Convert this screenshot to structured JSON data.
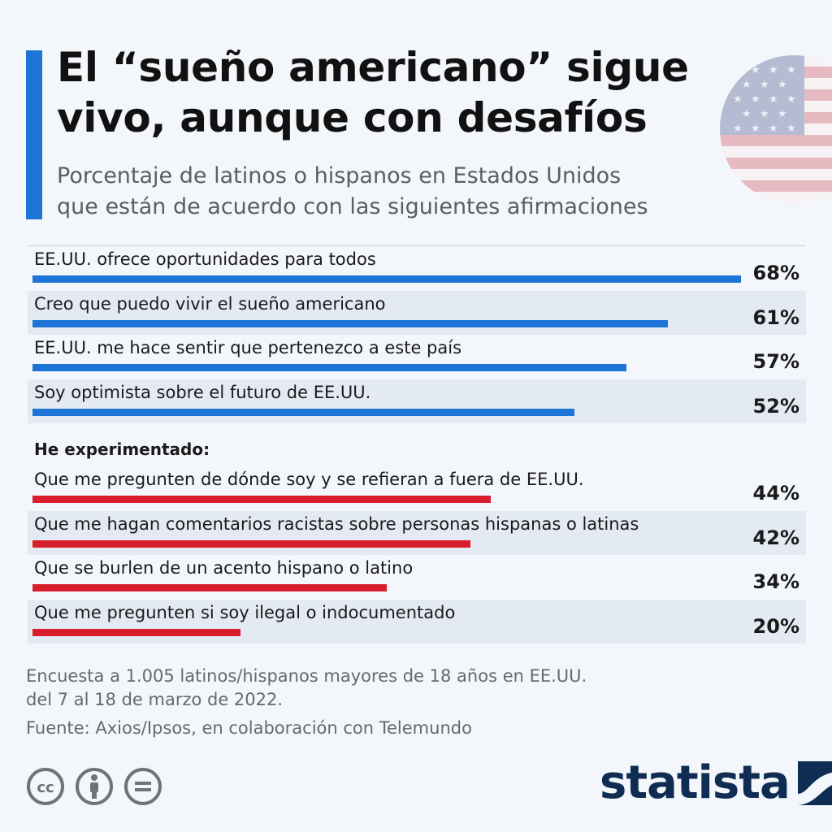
{
  "header": {
    "title_line1": "El “sueño americano” sigue",
    "title_line2": "vivo, aunque con desafíos",
    "subtitle_line1": "Porcentaje de latinos o hispanos en Estados Unidos",
    "subtitle_line2": "que están de acuerdo con las siguientes afirmaciones"
  },
  "colors": {
    "accent": "#1b74d6",
    "agree_bar": "#1b74d6",
    "experience_bar": "#d81e2c",
    "brand": "#0f2d52"
  },
  "chart_data": {
    "type": "bar",
    "orientation": "horizontal",
    "unit": "%",
    "groups": [
      {
        "name": "",
        "color": "#1b74d6",
        "categories": [
          "EE.UU. ofrece oportunidades para todos",
          "Creo que puedo vivir el sueño americano",
          "EE.UU. me hace sentir que pertenezco a este país",
          "Soy optimista sobre el futuro de EE.UU."
        ],
        "values": [
          68,
          61,
          57,
          52
        ],
        "value_labels": [
          "68%",
          "61%",
          "57%",
          "52%"
        ]
      },
      {
        "name": "He experimentado:",
        "color": "#d81e2c",
        "categories": [
          "Que me pregunten de dónde soy y se refieran a fuera de EE.UU.",
          "Que me hagan comentarios racistas sobre personas hispanas o latinas",
          "Que se burlen de un acento hispano o latino",
          "Que me pregunten si soy ilegal o indocumentado"
        ],
        "values": [
          44,
          42,
          34,
          20
        ],
        "value_labels": [
          "44%",
          "42%",
          "34%",
          "20%"
        ]
      }
    ],
    "xlim": [
      0,
      68
    ]
  },
  "notes": {
    "survey_line1": "Encuesta a 1.005 latinos/hispanos mayores de 18 años en EE.UU.",
    "survey_line2": "del 7 al 18 de marzo de 2022.",
    "source": "Fuente: Axios/Ipsos, en colaboración con Telemundo"
  },
  "footer": {
    "license_icons": [
      "cc-icon",
      "attribution-icon",
      "no-derivatives-icon"
    ],
    "logo_text": "statista"
  }
}
